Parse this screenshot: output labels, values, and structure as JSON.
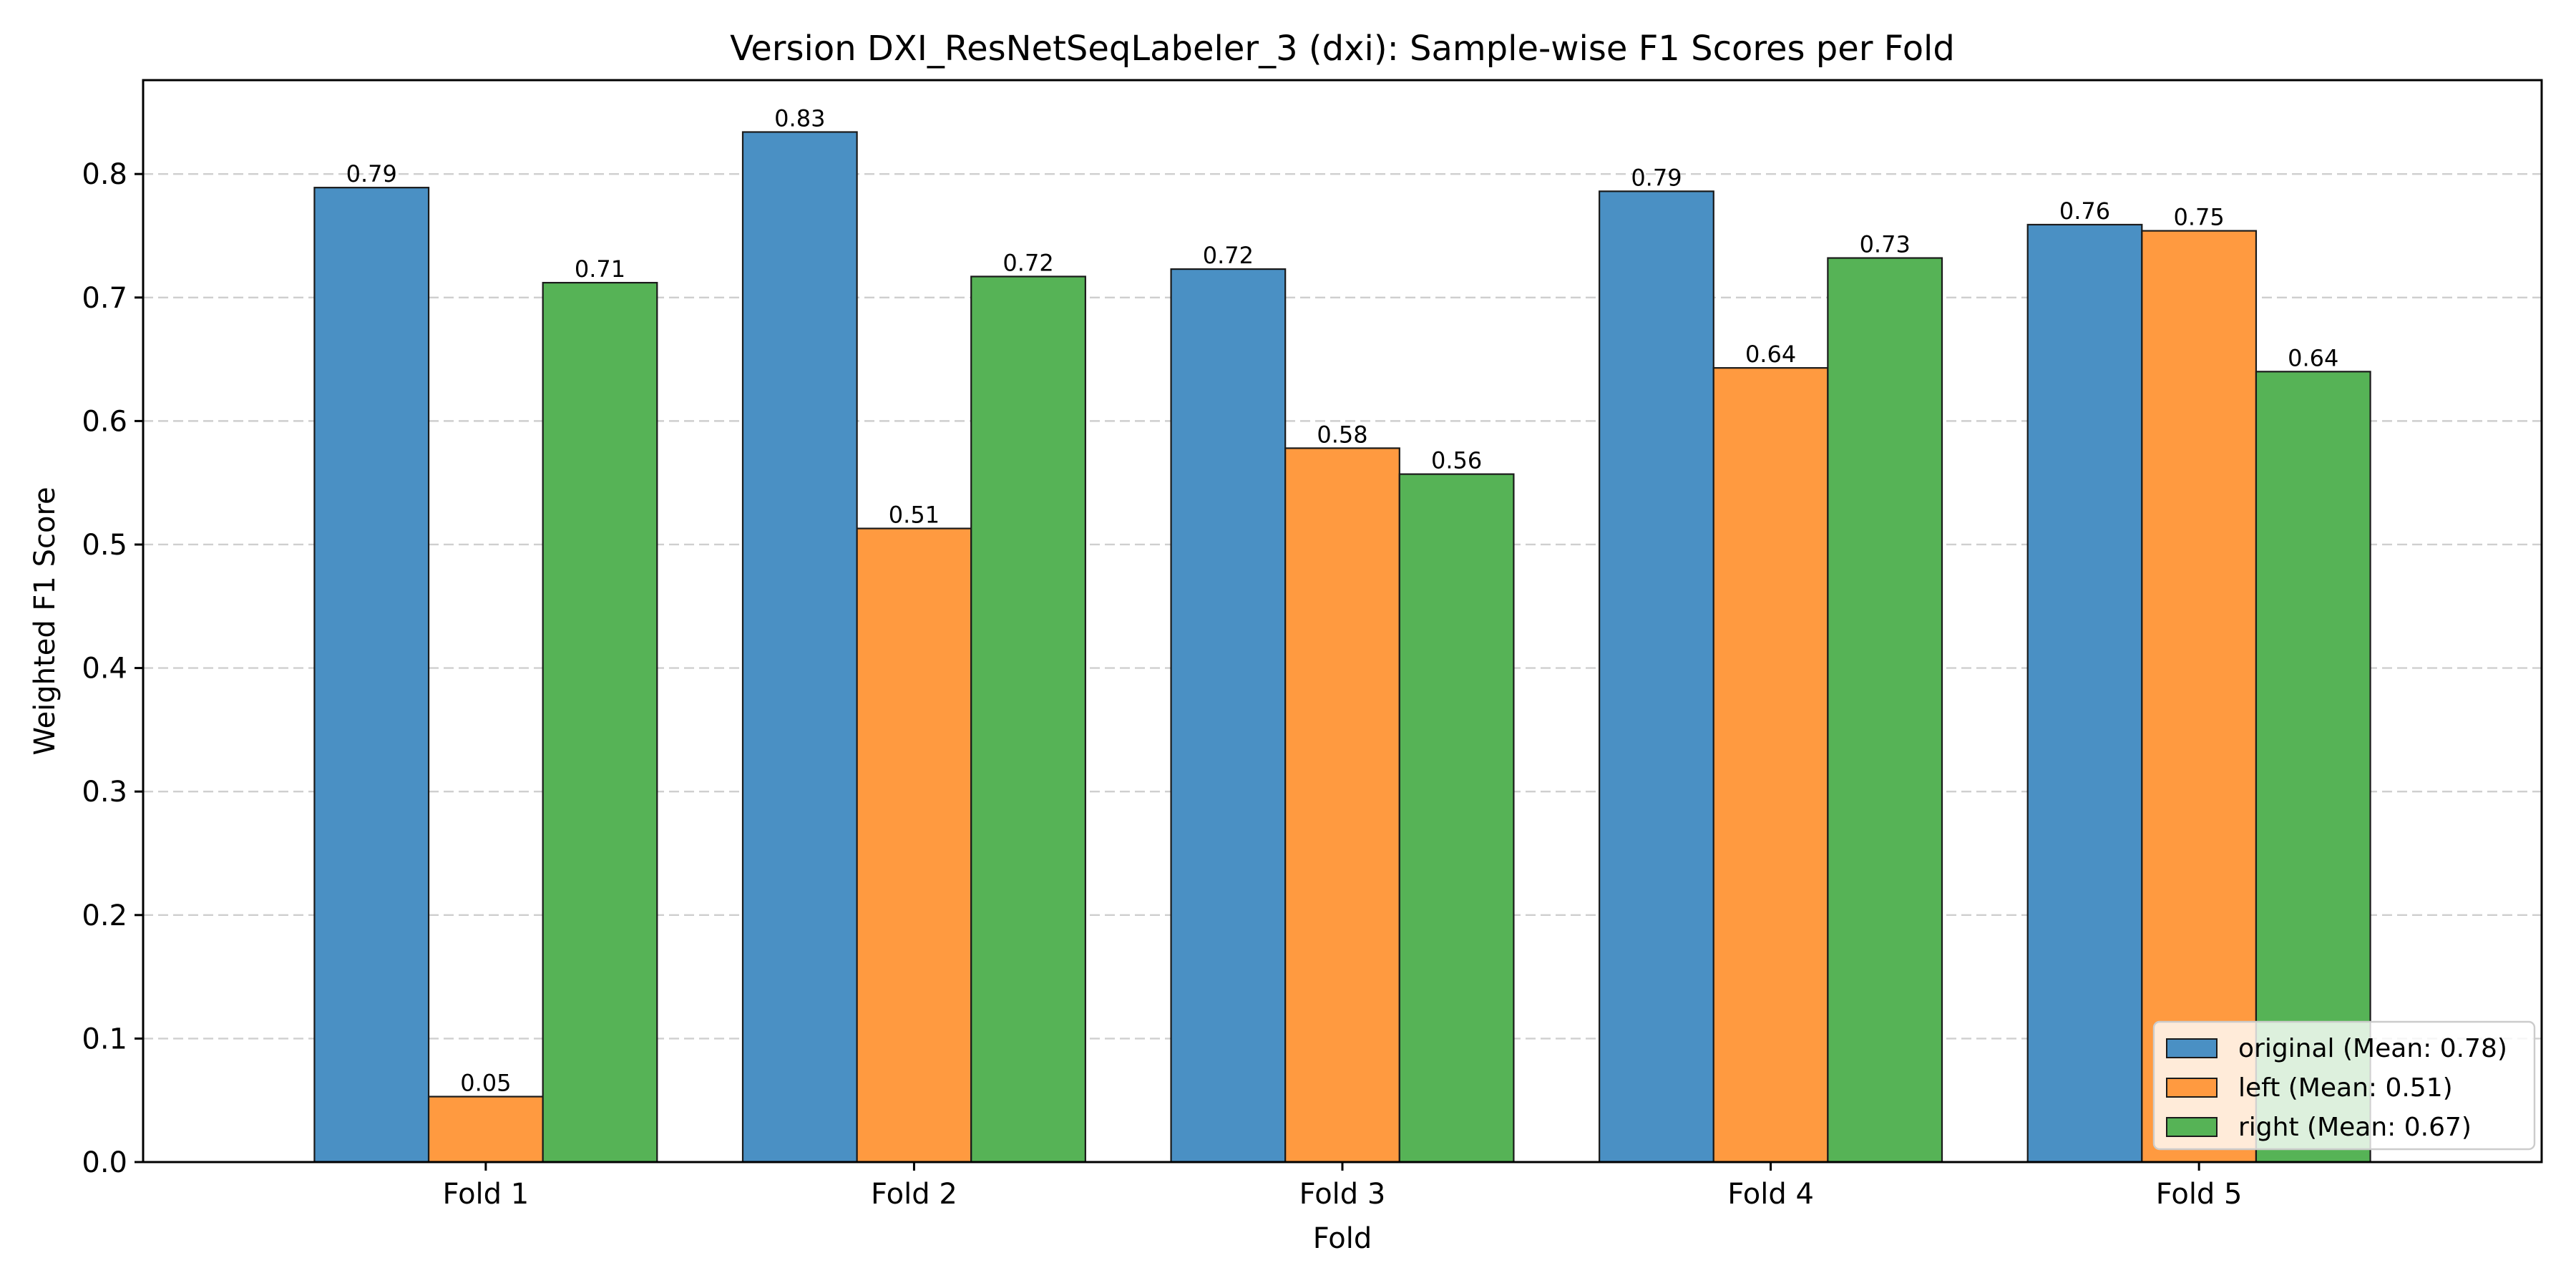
{
  "chart_data": {
    "type": "bar",
    "title": "Version DXI_ResNetSeqLabeler_3 (dxi): Sample-wise F1 Scores per Fold",
    "xlabel": "Fold",
    "ylabel": "Weighted F1 Score",
    "categories": [
      "Fold 1",
      "Fold 2",
      "Fold 3",
      "Fold 4",
      "Fold 5"
    ],
    "ylim": [
      0,
      0.876
    ],
    "yticks": [
      0.0,
      0.1,
      0.2,
      0.3,
      0.4,
      0.5,
      0.6,
      0.7,
      0.8
    ],
    "ytick_labels": [
      "0.0",
      "0.1",
      "0.2",
      "0.3",
      "0.4",
      "0.5",
      "0.6",
      "0.7",
      "0.8"
    ],
    "grid": "y-dashed",
    "legend_position": "bottom-right",
    "series": [
      {
        "name": "original (Mean: 0.78)",
        "color": "#4a90c4",
        "values": [
          0.789,
          0.834,
          0.723,
          0.786,
          0.759
        ],
        "labels": [
          "0.79",
          "0.83",
          "0.72",
          "0.79",
          "0.76"
        ]
      },
      {
        "name": "left (Mean: 0.51)",
        "color": "#ff9a40",
        "values": [
          0.053,
          0.513,
          0.578,
          0.643,
          0.754
        ],
        "labels": [
          "0.05",
          "0.51",
          "0.58",
          "0.64",
          "0.75"
        ]
      },
      {
        "name": "right (Mean: 0.67)",
        "color": "#56b356",
        "values": [
          0.712,
          0.717,
          0.557,
          0.732,
          0.64
        ],
        "labels": [
          "0.71",
          "0.72",
          "0.56",
          "0.73",
          "0.64"
        ]
      }
    ]
  }
}
